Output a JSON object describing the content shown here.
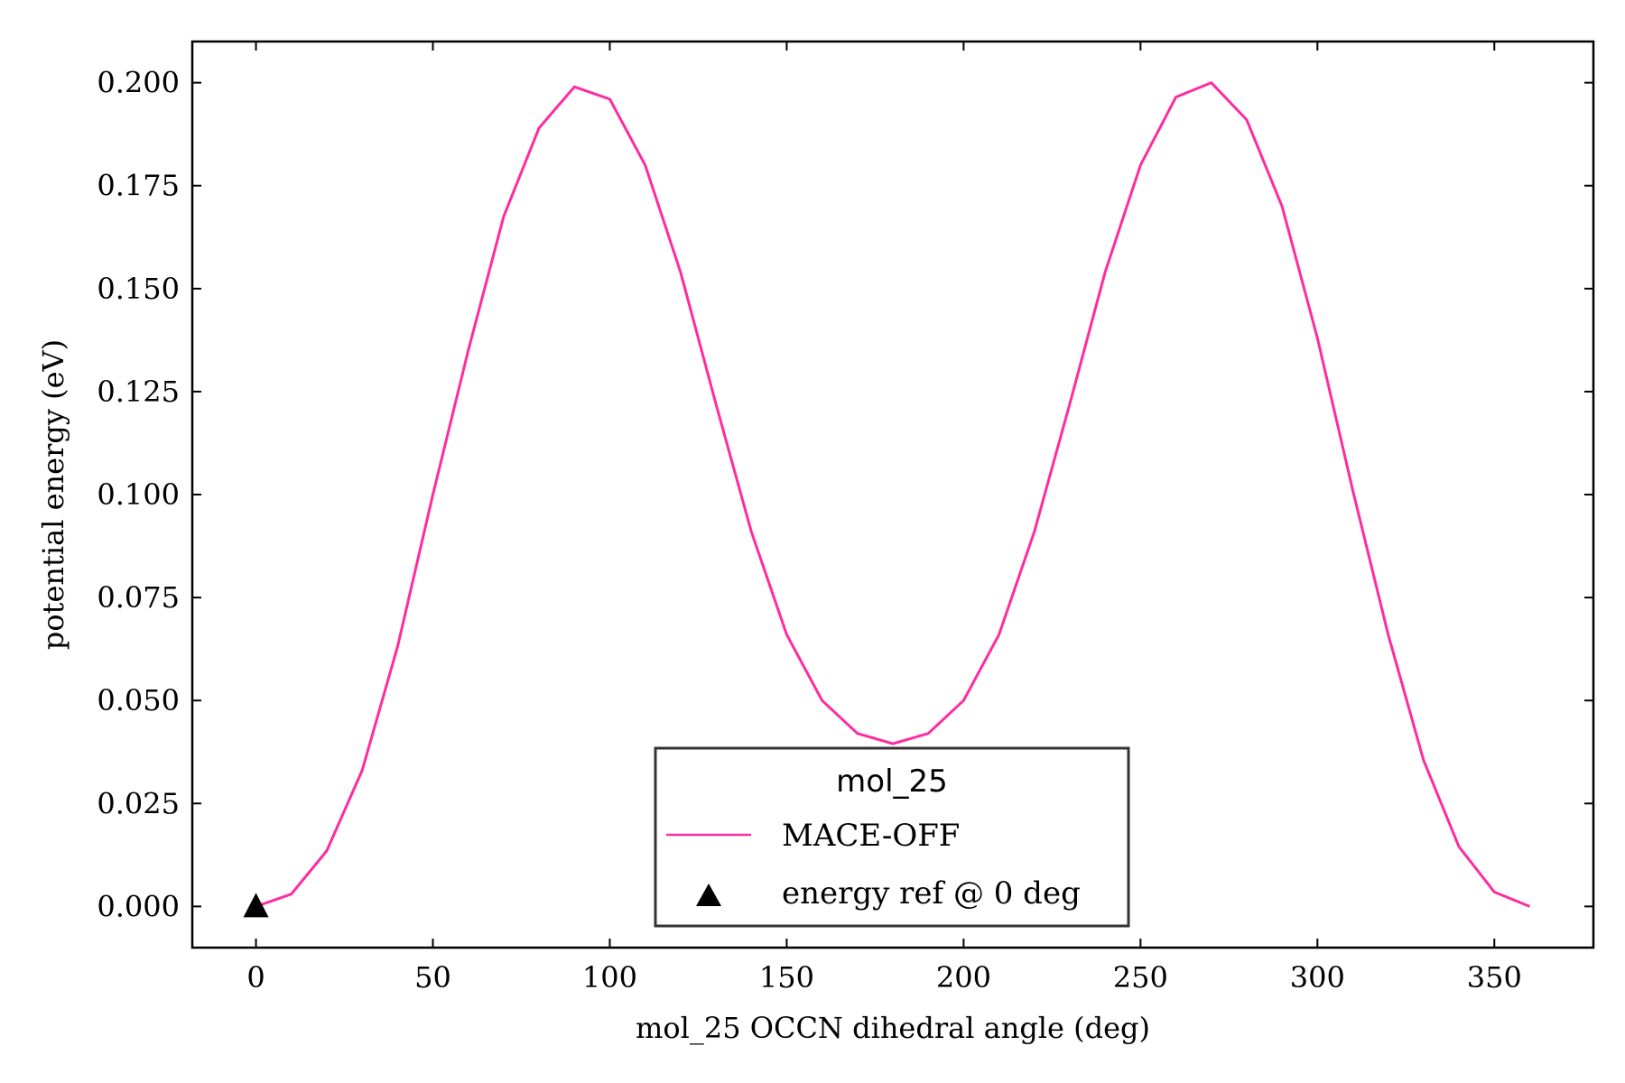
{
  "chart_data": {
    "type": "line",
    "title": "",
    "xlabel": "mol_25 OCCN dihedral angle (deg)",
    "ylabel": "potential energy (eV)",
    "xlim": [
      -18,
      378
    ],
    "ylim": [
      -0.01,
      0.21
    ],
    "xticks": [
      0,
      50,
      100,
      150,
      200,
      250,
      300,
      350
    ],
    "xtick_labels": [
      "0",
      "50",
      "100",
      "150",
      "200",
      "250",
      "300",
      "350"
    ],
    "yticks": [
      0.0,
      0.025,
      0.05,
      0.075,
      0.1,
      0.125,
      0.15,
      0.175,
      0.2
    ],
    "ytick_labels": [
      "0.000",
      "0.025",
      "0.050",
      "0.075",
      "0.100",
      "0.125",
      "0.150",
      "0.175",
      "0.200"
    ],
    "grid": false,
    "legend": {
      "title": "mol_25",
      "placement": "bottom-center",
      "entries": [
        "MACE-OFF",
        "energy ref @ 0 deg"
      ]
    },
    "series": [
      {
        "name": "MACE-OFF",
        "color": "#ff2ba0",
        "x": [
          0,
          10,
          20,
          30,
          40,
          50,
          60,
          70,
          80,
          90,
          100,
          110,
          120,
          130,
          140,
          150,
          160,
          170,
          180,
          190,
          200,
          210,
          220,
          230,
          240,
          250,
          260,
          270,
          280,
          290,
          300,
          310,
          320,
          330,
          340,
          350,
          360
        ],
        "y": [
          0.0,
          0.003,
          0.0135,
          0.033,
          0.063,
          0.1,
          0.135,
          0.1675,
          0.189,
          0.199,
          0.196,
          0.18,
          0.154,
          0.122,
          0.091,
          0.066,
          0.05,
          0.042,
          0.0395,
          0.042,
          0.05,
          0.066,
          0.091,
          0.122,
          0.154,
          0.18,
          0.1965,
          0.2,
          0.191,
          0.17,
          0.138,
          0.101,
          0.066,
          0.0355,
          0.0145,
          0.0035,
          0.0
        ]
      },
      {
        "name": "energy ref @ 0 deg",
        "color": "#000000",
        "marker": "triangle",
        "x": [
          0
        ],
        "y": [
          0.0
        ]
      }
    ]
  }
}
